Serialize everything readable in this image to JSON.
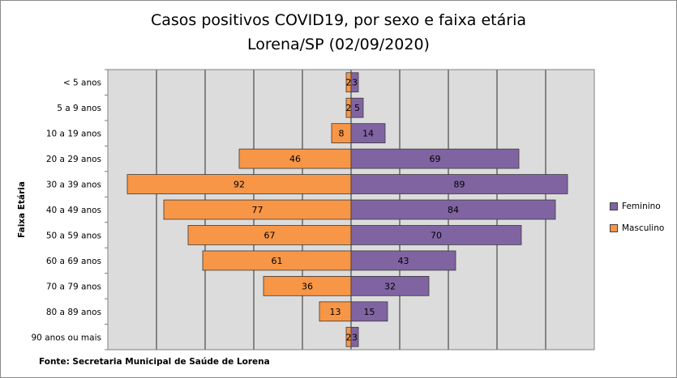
{
  "chart_data": {
    "type": "bar",
    "orientation": "horizontal",
    "title": "Casos positivos COVID19, por sexo e faixa etária",
    "subtitle": "Lorena/SP (02/09/2020)",
    "ylabel": "Faixa Etária",
    "xlabel": "",
    "categories": [
      "< 5 anos",
      "5 a 9 anos",
      "10 a 19 anos",
      "20 a 29 anos",
      "30 a 39 anos",
      "40 a 49 anos",
      "50 a 59 anos",
      "60 a 69 anos",
      "70 a 79 anos",
      "80 a 89 anos",
      "90 anos ou mais"
    ],
    "series": [
      {
        "name": "Feminino",
        "color": "#8064a2",
        "values": [
          3,
          5,
          14,
          69,
          89,
          84,
          70,
          43,
          32,
          15,
          3
        ]
      },
      {
        "name": "Masculino",
        "color": "#f79646",
        "values": [
          2,
          2,
          8,
          46,
          92,
          77,
          67,
          61,
          36,
          13,
          2
        ]
      }
    ],
    "xlim": [
      -100,
      100
    ],
    "grid": true,
    "legend": "right",
    "source": "Fonte: Secretaria Municipal  de Saúde de Lorena"
  }
}
